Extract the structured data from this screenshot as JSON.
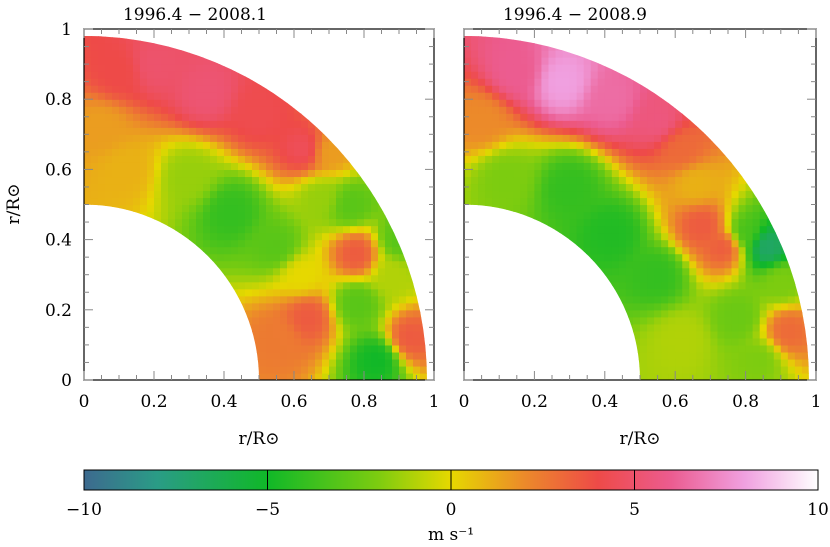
{
  "chart_data": [
    {
      "type": "heatmap",
      "title": "1996.4 − 2008.1",
      "xlabel": "r/R⊙",
      "ylabel": "r/R⊙",
      "xlim": [
        0,
        1
      ],
      "ylim": [
        0,
        1
      ],
      "xticks": [
        "0",
        "0.2",
        "0.4",
        "0.6",
        "0.8",
        "1"
      ],
      "yticks": [
        "0",
        "0.2",
        "0.4",
        "0.6",
        "0.8",
        "1"
      ],
      "domain": {
        "r_inner": 0.5,
        "r_outer": 0.98,
        "quadrant": "first"
      },
      "value_unit": "m s⁻¹",
      "field": [
        {
          "x": 0.05,
          "y": 0.72,
          "v": 1.5
        },
        {
          "x": 0.1,
          "y": 0.88,
          "v": 4.0
        },
        {
          "x": 0.2,
          "y": 0.9,
          "v": 5.0
        },
        {
          "x": 0.35,
          "y": 0.82,
          "v": 5.2
        },
        {
          "x": 0.5,
          "y": 0.76,
          "v": 4.2
        },
        {
          "x": 0.63,
          "y": 0.66,
          "v": 4.5
        },
        {
          "x": 0.7,
          "y": 0.65,
          "v": 1.5
        },
        {
          "x": 0.12,
          "y": 0.6,
          "v": 1.0
        },
        {
          "x": 0.3,
          "y": 0.58,
          "v": -1.5
        },
        {
          "x": 0.42,
          "y": 0.48,
          "v": -4.0
        },
        {
          "x": 0.55,
          "y": 0.38,
          "v": -3.0
        },
        {
          "x": 0.68,
          "y": 0.52,
          "v": -1.5
        },
        {
          "x": 0.76,
          "y": 0.5,
          "v": -3.0
        },
        {
          "x": 0.62,
          "y": 0.3,
          "v": 0.0
        },
        {
          "x": 0.56,
          "y": 0.12,
          "v": 2.5
        },
        {
          "x": 0.64,
          "y": 0.18,
          "v": 3.5
        },
        {
          "x": 0.78,
          "y": 0.36,
          "v": 3.5
        },
        {
          "x": 0.78,
          "y": 0.22,
          "v": -3.0
        },
        {
          "x": 0.84,
          "y": 0.06,
          "v": -5.0
        },
        {
          "x": 0.88,
          "y": 0.3,
          "v": -1.0
        },
        {
          "x": 0.93,
          "y": 0.12,
          "v": 3.5
        },
        {
          "x": 0.9,
          "y": 0.4,
          "v": -3.0
        }
      ]
    },
    {
      "type": "heatmap",
      "title": "1996.4 − 2008.9",
      "xlabel": "r/R⊙",
      "ylabel": "",
      "xlim": [
        0,
        1
      ],
      "ylim": [
        0,
        1
      ],
      "xticks": [
        "0",
        "0.2",
        "0.4",
        "0.6",
        "0.8",
        "1"
      ],
      "yticks": [],
      "domain": {
        "r_inner": 0.5,
        "r_outer": 0.98,
        "quadrant": "first"
      },
      "value_unit": "m s⁻¹",
      "field": [
        {
          "x": 0.05,
          "y": 0.74,
          "v": 2.0
        },
        {
          "x": 0.15,
          "y": 0.88,
          "v": 6.0
        },
        {
          "x": 0.28,
          "y": 0.85,
          "v": 8.0
        },
        {
          "x": 0.42,
          "y": 0.8,
          "v": 6.5
        },
        {
          "x": 0.55,
          "y": 0.74,
          "v": 5.5
        },
        {
          "x": 0.62,
          "y": 0.66,
          "v": 3.0
        },
        {
          "x": 0.12,
          "y": 0.58,
          "v": -2.0
        },
        {
          "x": 0.3,
          "y": 0.55,
          "v": -4.0
        },
        {
          "x": 0.42,
          "y": 0.42,
          "v": -4.5
        },
        {
          "x": 0.55,
          "y": 0.3,
          "v": -4.0
        },
        {
          "x": 0.68,
          "y": 0.44,
          "v": 3.5
        },
        {
          "x": 0.74,
          "y": 0.38,
          "v": 3.5
        },
        {
          "x": 0.66,
          "y": 0.56,
          "v": 1.0
        },
        {
          "x": 0.8,
          "y": 0.42,
          "v": -3.5
        },
        {
          "x": 0.86,
          "y": 0.38,
          "v": -7.0
        },
        {
          "x": 0.62,
          "y": 0.12,
          "v": -1.0
        },
        {
          "x": 0.78,
          "y": 0.18,
          "v": -2.5
        },
        {
          "x": 0.84,
          "y": 0.06,
          "v": -2.0
        },
        {
          "x": 0.92,
          "y": 0.14,
          "v": 3.0
        },
        {
          "x": 0.9,
          "y": 0.28,
          "v": -2.0
        }
      ]
    }
  ],
  "colorbar": {
    "label": "m s⁻¹",
    "min": -10,
    "max": 10,
    "ticks": [
      "−10",
      "−5",
      "0",
      "5",
      "10"
    ],
    "tick_values": [
      -10,
      -5,
      0,
      5,
      10
    ],
    "stops": [
      {
        "v": -10,
        "color": "#3d6a8f"
      },
      {
        "v": -8,
        "color": "#2a9c86"
      },
      {
        "v": -5,
        "color": "#10b828"
      },
      {
        "v": -2,
        "color": "#7ccc10"
      },
      {
        "v": 0,
        "color": "#e6d800"
      },
      {
        "v": 2,
        "color": "#ec8a2a"
      },
      {
        "v": 4,
        "color": "#ee4a48"
      },
      {
        "v": 6,
        "color": "#ec5c90"
      },
      {
        "v": 8,
        "color": "#f0a0e0"
      },
      {
        "v": 10,
        "color": "#ffffff"
      }
    ]
  }
}
